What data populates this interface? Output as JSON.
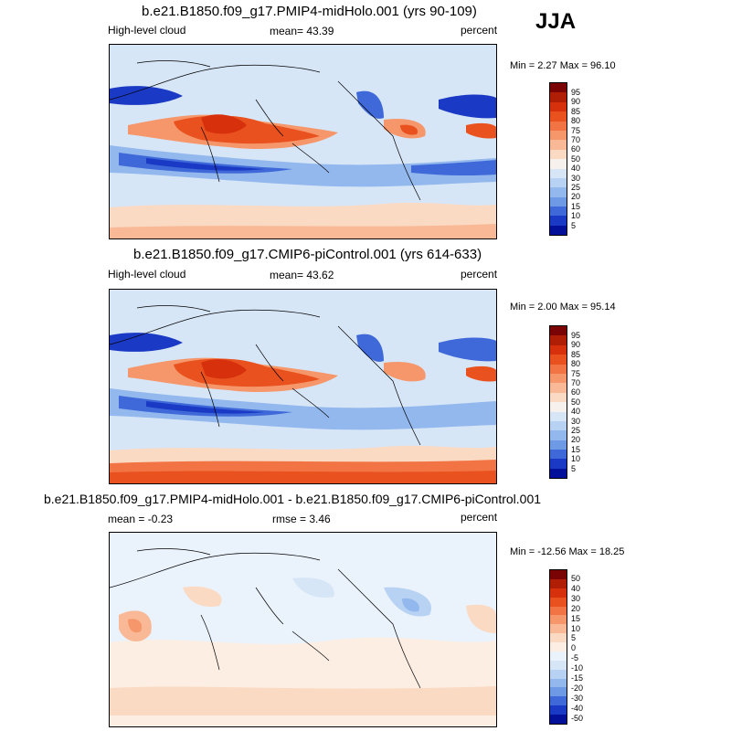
{
  "season": "JJA",
  "panels": [
    {
      "title": "b.e21.B1850.f09_g17.PMIP4-midHolo.001 (yrs 90-109)",
      "left_label": "High-level cloud",
      "center_label": "mean=  43.39",
      "units": "percent",
      "minmax": "Min =   2.27 Max =  96.10",
      "colorbar_labels": [
        "95",
        "90",
        "85",
        "80",
        "75",
        "70",
        "60",
        "50",
        "40",
        "30",
        "25",
        "20",
        "15",
        "10",
        "5"
      ]
    },
    {
      "title": "b.e21.B1850.f09_g17.CMIP6-piControl.001 (yrs 614-633)",
      "left_label": "High-level cloud",
      "center_label": "mean=  43.62",
      "units": "percent",
      "minmax": "Min =   2.00 Max =  95.14",
      "colorbar_labels": [
        "95",
        "90",
        "85",
        "80",
        "75",
        "70",
        "60",
        "50",
        "40",
        "30",
        "25",
        "20",
        "15",
        "10",
        "5"
      ]
    },
    {
      "title": "b.e21.B1850.f09_g17.PMIP4-midHolo.001 - b.e21.B1850.f09_g17.CMIP6-piControl.001",
      "left_label": "mean =  -0.23",
      "center_label": "rmse =   3.46",
      "units": "percent",
      "minmax": "Min = -12.56 Max =  18.25",
      "colorbar_labels": [
        "50",
        "40",
        "30",
        "20",
        "15",
        "10",
        "5",
        "0",
        "-5",
        "-10",
        "-15",
        "-20",
        "-30",
        "-40",
        "-50"
      ]
    }
  ],
  "colors": {
    "abs_scale": [
      "#7a0403",
      "#b01e06",
      "#d7300c",
      "#e9521f",
      "#f27444",
      "#f6976b",
      "#f9b996",
      "#fbdac4",
      "#f7f1ee",
      "#d7e6f7",
      "#b7d2f3",
      "#93b8ed",
      "#6e99e4",
      "#3f69d8",
      "#1a39c4",
      "#02109a"
    ],
    "diff_scale": [
      "#7a0403",
      "#b01e06",
      "#d7300c",
      "#e9521f",
      "#f27444",
      "#f6976b",
      "#f9b996",
      "#fbdac4",
      "#fdeee3",
      "#eaf2fb",
      "#d7e6f7",
      "#b7d2f3",
      "#93b8ed",
      "#6e99e4",
      "#3f69d8",
      "#1a39c4",
      "#02109a"
    ]
  }
}
